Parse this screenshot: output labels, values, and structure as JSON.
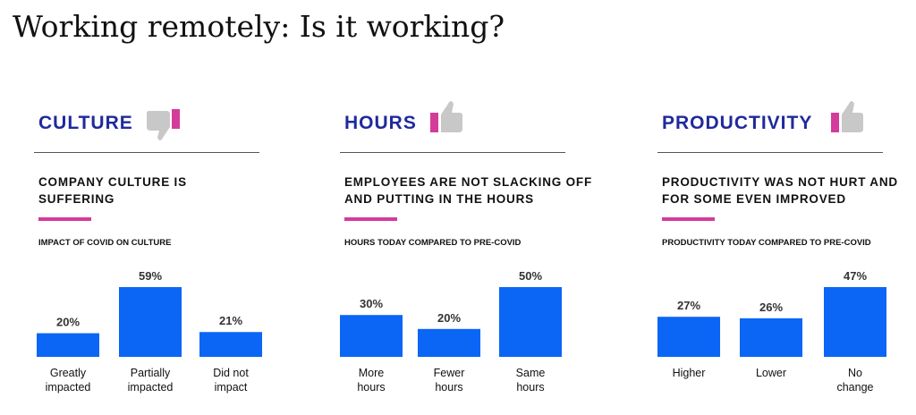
{
  "title": "Working remotely: Is it working?",
  "colors": {
    "bar": "#0b66f5",
    "heading": "#1f2a9c",
    "accent": "#d43b9a",
    "thumb": "#c8c8c8"
  },
  "chart_data": [
    {
      "type": "bar",
      "heading": "CULTURE",
      "icon": "thumbs-down-icon",
      "subtitle": "COMPANY CULTURE IS\nSUFFERING",
      "title": "IMPACT OF COVID ON CULTURE",
      "categories": [
        "Greatly\nimpacted",
        "Partially\nimpacted",
        "Did not\nimpact"
      ],
      "values": [
        20,
        59,
        21
      ],
      "value_labels": [
        "20%",
        "59%",
        "21%"
      ],
      "ylim": [
        0,
        59
      ]
    },
    {
      "type": "bar",
      "heading": "HOURS",
      "icon": "thumbs-up-icon",
      "subtitle": "EMPLOYEES ARE NOT SLACKING OFF\nAND PUTTING IN THE HOURS",
      "title": "HOURS TODAY COMPARED TO PRE-COVID",
      "categories": [
        "More\nhours",
        "Fewer\nhours",
        "Same\nhours"
      ],
      "values": [
        30,
        20,
        50
      ],
      "value_labels": [
        "30%",
        "20%",
        "50%"
      ],
      "ylim": [
        0,
        50
      ]
    },
    {
      "type": "bar",
      "heading": "PRODUCTIVITY",
      "icon": "thumbs-up-icon",
      "subtitle": "PRODUCTIVITY WAS NOT HURT AND\nFOR SOME EVEN IMPROVED",
      "title": "PRODUCTIVITY TODAY COMPARED TO PRE-COVID",
      "categories": [
        "Higher",
        "Lower",
        "No\nchange"
      ],
      "values": [
        27,
        26,
        47
      ],
      "value_labels": [
        "27%",
        "26%",
        "47%"
      ],
      "ylim": [
        0,
        47
      ]
    }
  ]
}
